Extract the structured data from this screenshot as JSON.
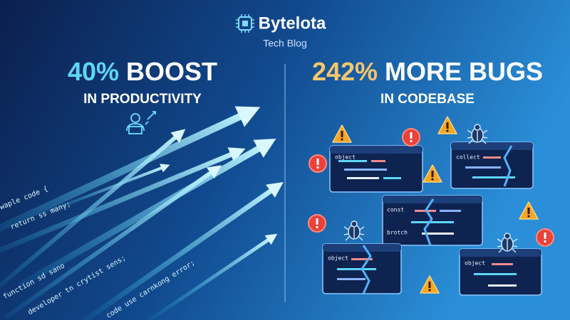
{
  "header": {
    "logo": "Bytelota",
    "subtitle": "Tech Blog"
  },
  "left": {
    "highlight": "40%",
    "headline": "BOOST",
    "caption": "IN PRODUCTIVITY",
    "code_lines": [
      "waple code {",
      "return ss many;",
      "function sd sano",
      "developer tn crytist sens;",
      "code use carnkong error;"
    ]
  },
  "right": {
    "highlight": "242%",
    "headline": "MORE BUGS",
    "caption": "IN CODEBASE",
    "code_keywords": [
      "object",
      "collect",
      "const",
      "brotch",
      "object",
      "object"
    ]
  }
}
